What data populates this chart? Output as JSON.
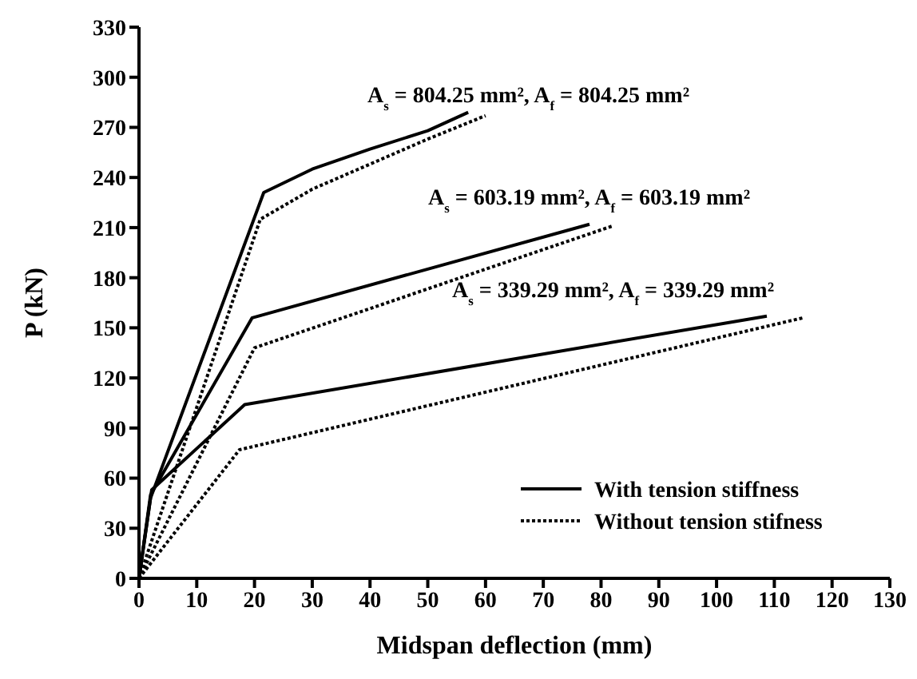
{
  "chart_data": {
    "type": "line",
    "xlabel": "Midspan deflection (mm)",
    "ylabel": "P (kN)",
    "xlim": [
      0,
      130
    ],
    "xticks": [
      0,
      10,
      20,
      30,
      40,
      50,
      60,
      70,
      80,
      90,
      100,
      110,
      120,
      130
    ],
    "ylim": [
      0,
      330
    ],
    "yticks": [
      0,
      30,
      60,
      90,
      120,
      150,
      180,
      210,
      240,
      270,
      300,
      330
    ],
    "grid": false,
    "legend": "bottom right",
    "marker": "none",
    "series": [
      {
        "name": "With tension stiffness",
        "color": "#000000",
        "line_style": "solid",
        "x": [
          0,
          2,
          21.6,
          30,
          40,
          50,
          57
        ],
        "values": [
          0,
          48,
          231,
          245,
          257,
          268,
          279
        ]
      },
      {
        "name": "Without tension stifness",
        "color": "#000000",
        "line_style": "dotted",
        "x": [
          0,
          21,
          30,
          40,
          50,
          60
        ],
        "values": [
          0,
          215,
          233,
          248,
          263,
          277
        ]
      },
      {
        "color": "#000000",
        "line_style": "solid",
        "x": [
          0,
          2,
          19.6,
          78
        ],
        "values": [
          0,
          50,
          156,
          212
        ]
      },
      {
        "color": "#000000",
        "line_style": "dotted",
        "x": [
          0,
          20,
          82
        ],
        "values": [
          0,
          138,
          211
        ]
      },
      {
        "color": "#000000",
        "line_style": "solid",
        "x": [
          0,
          2.2,
          18.3,
          108.7
        ],
        "values": [
          0,
          53,
          104,
          157
        ]
      },
      {
        "color": "#000000",
        "line_style": "dotted",
        "x": [
          0,
          17.4,
          115
        ],
        "values": [
          0,
          77,
          156
        ]
      }
    ],
    "annotations": [
      "A$_{s}$ = 804.25 mm², A$_{f}$ = 804.25 mm²",
      "A$_{s}$ = 603.19 mm², A$_{f}$ = 603.19 mm²",
      "A$_{s}$ = 339.29 mm², A$_{f}$ = 339.29 mm²"
    ]
  }
}
